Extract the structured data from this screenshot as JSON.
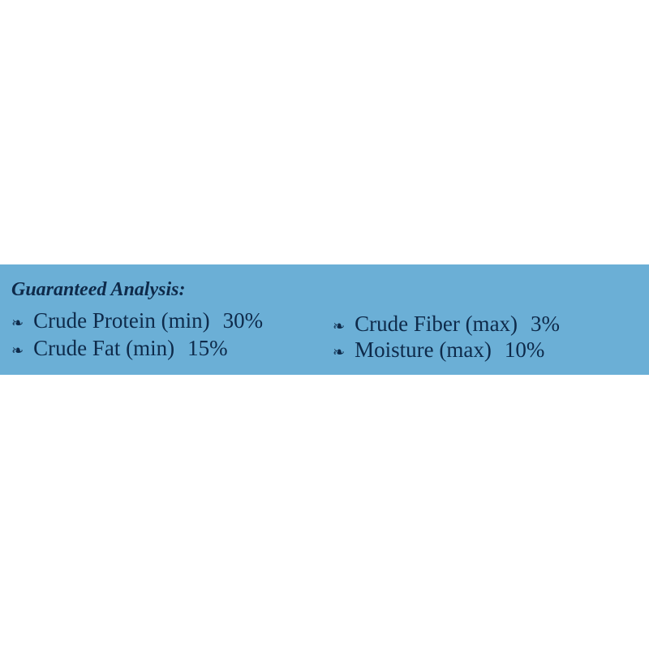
{
  "title": "Guaranteed Analysis:",
  "items": [
    {
      "name": "Crude Protein (min)",
      "value": "30%"
    },
    {
      "name": "Crude Fiber (max)",
      "value": "3%"
    },
    {
      "name": "Crude Fat (min)",
      "value": "15%"
    },
    {
      "name": "Moisture (max)",
      "value": "10%"
    }
  ]
}
